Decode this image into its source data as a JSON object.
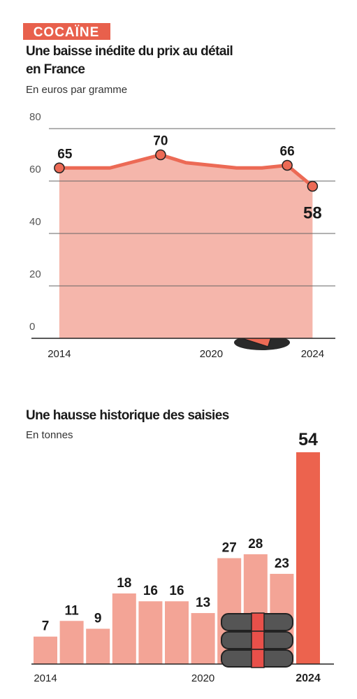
{
  "header": {
    "tag": "COCAÏNE"
  },
  "chart_data": [
    {
      "type": "area",
      "title": [
        "Une baisse inédite du prix au détail",
        "en France"
      ],
      "subtitle": "En euros par gramme",
      "x": [
        2014,
        2015,
        2016,
        2017,
        2018,
        2019,
        2020,
        2021,
        2022,
        2023,
        2024
      ],
      "values": [
        65,
        65,
        65,
        67.5,
        70,
        67,
        66,
        65,
        65,
        66,
        58
      ],
      "value_labels": [
        "65",
        null,
        null,
        null,
        "70",
        null,
        null,
        null,
        null,
        "66",
        "58"
      ],
      "xlim": [
        2012.9,
        2024.9
      ],
      "xticks": [
        2014,
        2020,
        2024
      ],
      "ylim": [
        0,
        80
      ],
      "yticks": [
        0,
        20,
        40,
        60,
        80
      ],
      "grid": true,
      "color": "#ec6a55",
      "fill": "#f5b6ab"
    },
    {
      "type": "bar",
      "title": "Une hausse historique des saisies",
      "subtitle": "En tonnes",
      "categories": [
        "2014",
        null,
        null,
        null,
        null,
        null,
        "2020",
        null,
        null,
        null,
        "2024"
      ],
      "values": [
        7,
        11,
        9,
        18,
        16,
        16,
        13,
        27,
        28,
        23,
        54
      ],
      "ylim": [
        0,
        54
      ],
      "colors": [
        "#f3a496",
        "#f3a496",
        "#f3a496",
        "#f3a496",
        "#f3a496",
        "#f3a496",
        "#f3a496",
        "#f3a496",
        "#f3a496",
        "#f3a496",
        "#ec634e"
      ]
    }
  ]
}
